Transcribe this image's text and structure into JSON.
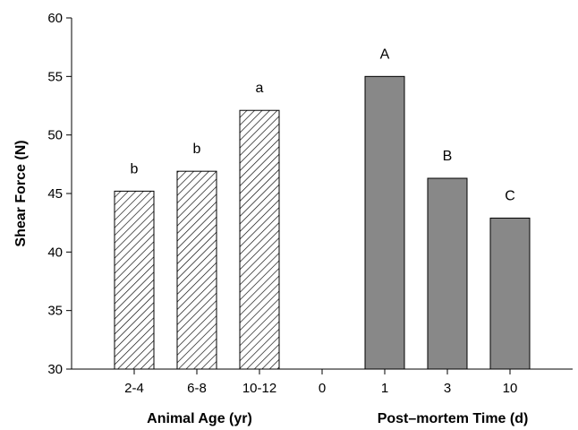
{
  "chart_data": {
    "type": "bar",
    "ylabel": "Shear Force (N)",
    "ylim": [
      30,
      60
    ],
    "yticks": [
      30,
      35,
      40,
      45,
      50,
      55,
      60
    ],
    "grid": false,
    "categories": [
      "2-4",
      "6-8",
      "10-12",
      "0",
      "1",
      "3",
      "10"
    ],
    "group_labels": [
      "Animal Age (yr)",
      "Post–mortem Time (d)"
    ],
    "series": [
      {
        "values": [
          45.2,
          46.9,
          52.1,
          null,
          null,
          null,
          null
        ],
        "letters": [
          "b",
          "b",
          "a",
          null,
          null,
          null,
          null
        ],
        "fill": "hatched"
      },
      {
        "values": [
          null,
          null,
          null,
          null,
          55.0,
          46.3,
          42.9
        ],
        "letters": [
          null,
          null,
          null,
          null,
          "A",
          "B",
          "C"
        ],
        "fill": "#888888"
      }
    ]
  }
}
